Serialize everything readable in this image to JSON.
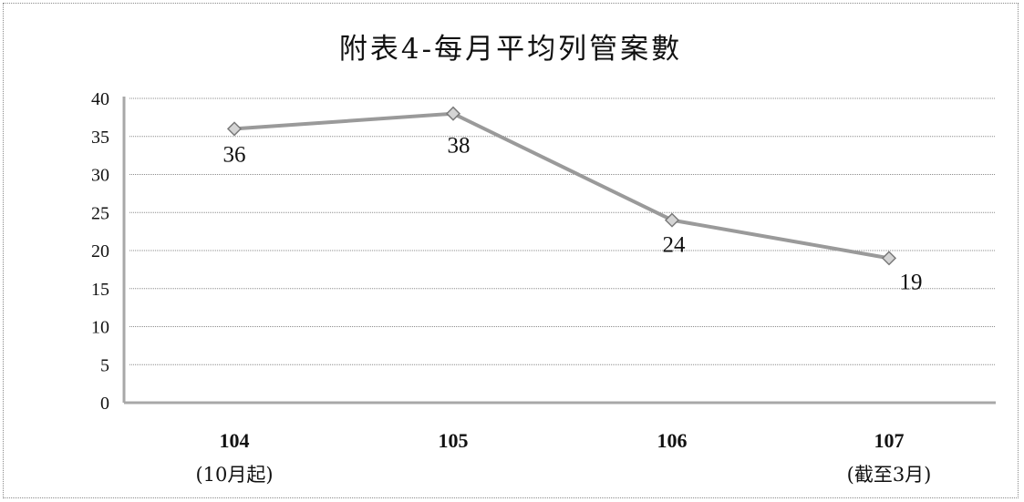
{
  "chart_data": {
    "type": "line",
    "title": "附表4-每月平均列管案數",
    "categories": [
      {
        "label": "104",
        "sublabel": "(10月起)"
      },
      {
        "label": "105",
        "sublabel": ""
      },
      {
        "label": "106",
        "sublabel": ""
      },
      {
        "label": "107",
        "sublabel": "(截至3月)"
      }
    ],
    "series": [
      {
        "values": [
          36,
          38,
          24,
          19
        ]
      }
    ],
    "data_labels": [
      "36",
      "38",
      "24",
      "19"
    ],
    "yticks": [
      "0",
      "5",
      "10",
      "15",
      "20",
      "25",
      "30",
      "35",
      "40"
    ],
    "ylim": [
      0,
      40
    ],
    "grid": true,
    "legend": "none",
    "marker": "diamond",
    "colors": {
      "line": "#9a9a9a",
      "marker_fill": "#d4d4d4",
      "grid": "#8c8c8c"
    }
  }
}
